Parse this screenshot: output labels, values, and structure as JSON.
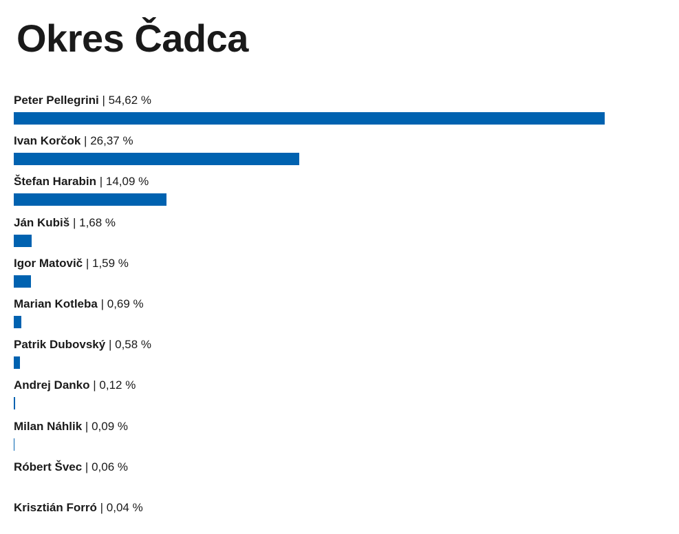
{
  "title": "Okres Čadca",
  "chart_data": {
    "type": "bar",
    "orientation": "horizontal",
    "title": "Okres Čadca",
    "unit": "%",
    "color": "#0062b0",
    "categories": [
      "Peter Pellegrini",
      "Ivan Korčok",
      "Štefan Harabin",
      "Ján Kubiš",
      "Igor Matovič",
      "Marian Kotleba",
      "Patrik Dubovský",
      "Andrej Danko",
      "Milan Náhlik",
      "Róbert Švec",
      "Krisztián Forró"
    ],
    "values": [
      54.62,
      26.37,
      14.09,
      1.68,
      1.59,
      0.69,
      0.58,
      0.12,
      0.09,
      0.06,
      0.04
    ],
    "value_labels": [
      "54,62 %",
      "26,37 %",
      "14,09 %",
      "1,68 %",
      "1,59 %",
      "0,69 %",
      "0,58 %",
      "0,12 %",
      "0,09 %",
      "0,06 %",
      "0,04 %"
    ],
    "xlim": [
      0,
      55
    ]
  }
}
